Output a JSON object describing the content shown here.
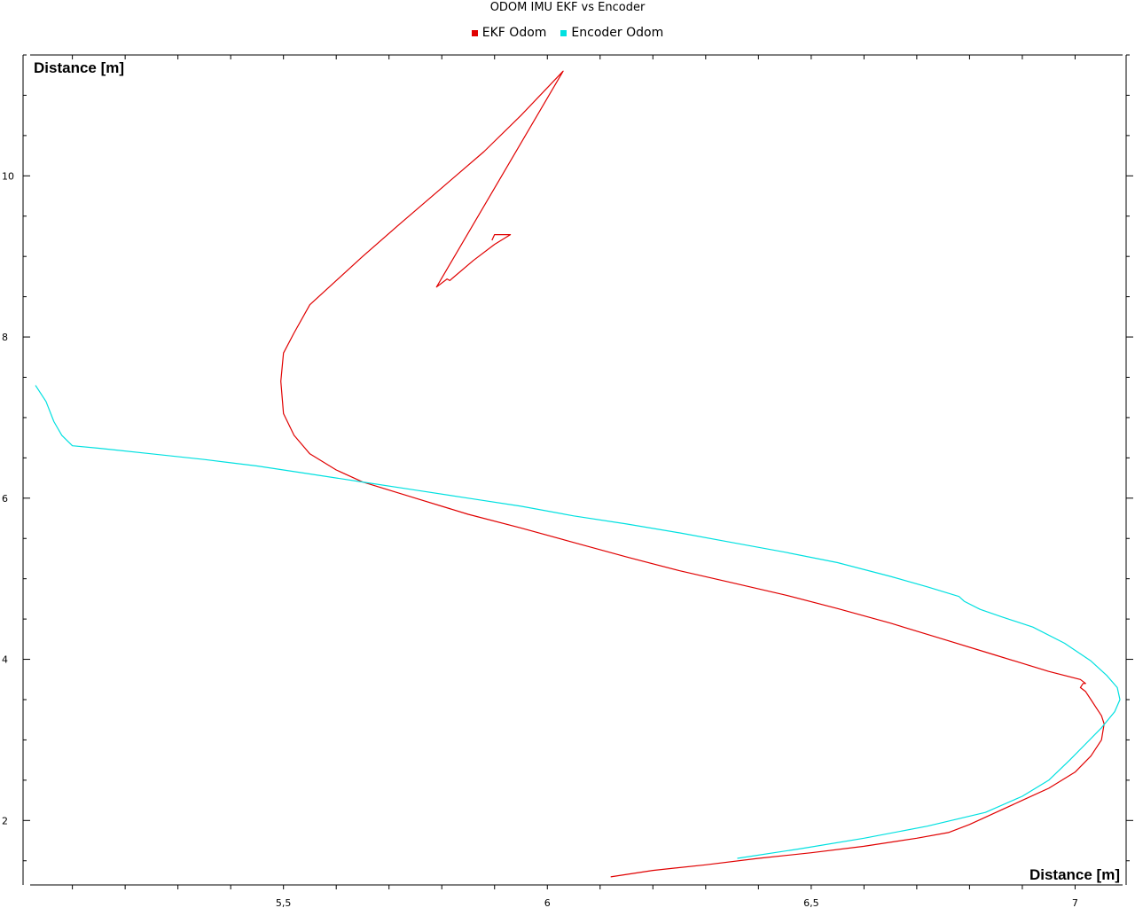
{
  "chart_data": {
    "type": "line",
    "title": "ODOM IMU EKF vs Encoder",
    "xlabel": "Distance [m]",
    "ylabel": "Distance [m]",
    "xlim": [
      5.02,
      7.09
    ],
    "ylim": [
      1.2,
      11.5
    ],
    "x_ticks": [
      5.5,
      6,
      6.5,
      7
    ],
    "x_tick_labels": [
      "5,5",
      "6",
      "6,5",
      "7"
    ],
    "y_ticks": [
      2,
      4,
      6,
      8,
      10
    ],
    "y_tick_labels": [
      "2",
      "4",
      "6",
      "8",
      "10"
    ],
    "grid": false,
    "legend_position": "top-center",
    "series": [
      {
        "name": "EKF Odom",
        "color": "#e00000",
        "x": [
          6.12,
          6.2,
          6.3,
          6.4,
          6.5,
          6.6,
          6.7,
          6.76,
          6.8,
          6.85,
          6.9,
          6.95,
          7.0,
          7.03,
          7.05,
          7.055,
          7.05,
          7.04,
          7.03,
          7.02,
          7.01,
          7.015,
          7.02,
          7.01,
          6.95,
          6.85,
          6.75,
          6.65,
          6.55,
          6.45,
          6.35,
          6.25,
          6.15,
          6.05,
          5.95,
          5.85,
          5.75,
          5.65,
          5.6,
          5.55,
          5.52,
          5.5,
          5.495,
          5.5,
          5.52,
          5.55,
          5.6,
          5.65,
          5.72,
          5.8,
          5.88,
          5.95,
          6.03,
          5.79,
          5.81,
          5.815,
          5.86,
          5.9,
          5.93,
          5.9,
          5.895
        ],
        "y": [
          1.3,
          1.38,
          1.45,
          1.53,
          1.6,
          1.68,
          1.78,
          1.85,
          1.95,
          2.1,
          2.25,
          2.4,
          2.6,
          2.8,
          3.0,
          3.2,
          3.3,
          3.4,
          3.5,
          3.6,
          3.65,
          3.7,
          3.7,
          3.75,
          3.85,
          4.05,
          4.25,
          4.45,
          4.63,
          4.8,
          4.95,
          5.1,
          5.27,
          5.45,
          5.63,
          5.8,
          6.0,
          6.2,
          6.35,
          6.55,
          6.78,
          7.05,
          7.45,
          7.8,
          8.05,
          8.4,
          8.7,
          9.0,
          9.4,
          9.85,
          10.3,
          10.75,
          11.3,
          8.62,
          8.72,
          8.7,
          8.95,
          9.15,
          9.27,
          9.27,
          9.2
        ]
      },
      {
        "name": "Encoder Odom",
        "color": "#00e0e0",
        "x": [
          6.36,
          6.48,
          6.6,
          6.72,
          6.83,
          6.9,
          6.95,
          6.99,
          7.02,
          7.05,
          7.075,
          7.085,
          7.08,
          7.06,
          7.03,
          6.98,
          6.92,
          6.86,
          6.82,
          6.79,
          6.78,
          6.72,
          6.65,
          6.55,
          6.45,
          6.35,
          6.25,
          6.15,
          6.05,
          5.95,
          5.85,
          5.75,
          5.65,
          5.55,
          5.45,
          5.35,
          5.25,
          5.15,
          5.1,
          5.08,
          5.065,
          5.05,
          5.03
        ],
        "y": [
          1.53,
          1.65,
          1.78,
          1.93,
          2.1,
          2.3,
          2.5,
          2.75,
          2.95,
          3.15,
          3.35,
          3.5,
          3.65,
          3.8,
          3.98,
          4.2,
          4.4,
          4.53,
          4.62,
          4.72,
          4.78,
          4.9,
          5.03,
          5.2,
          5.33,
          5.45,
          5.57,
          5.68,
          5.78,
          5.9,
          6.0,
          6.1,
          6.2,
          6.3,
          6.4,
          6.48,
          6.55,
          6.62,
          6.65,
          6.78,
          6.95,
          7.2,
          7.4
        ]
      }
    ]
  }
}
